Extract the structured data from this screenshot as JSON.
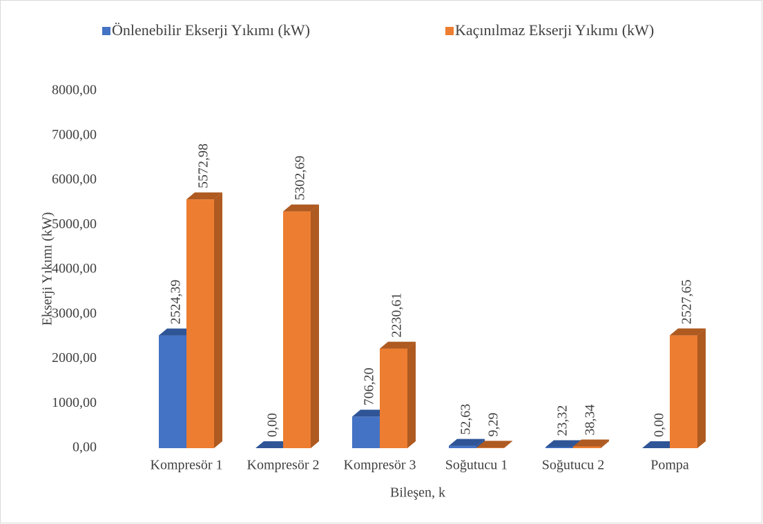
{
  "chart_data": {
    "type": "bar3d",
    "legend_position": "top",
    "x_label": "Bileşen, k",
    "y_label": "Ekserji Yıkımı (kW)",
    "categories": [
      "Kompresör 1",
      "Kompresör 2",
      "Kompresör 3",
      "Soğutucu 1",
      "Soğutucu 2",
      "Pompa"
    ],
    "series": [
      {
        "name": "Önlenebilir Ekserji Yıkımı (kW)",
        "color": "#4472c4",
        "side_color": "#2f5597",
        "values": [
          2524.39,
          0,
          706.2,
          52.63,
          23.32,
          0
        ],
        "value_labels": [
          "2524,39",
          "0,00",
          "706,20",
          "52,63",
          "23,32",
          "0,00"
        ]
      },
      {
        "name": "Kaçınılmaz Ekserji Yıkımı (kW)",
        "color": "#ed7d31",
        "side_color": "#ae5a21",
        "values": [
          5572.98,
          5302.69,
          2230.61,
          9.29,
          38.34,
          2527.65
        ],
        "value_labels": [
          "5572,98",
          "5302,69",
          "2230,61",
          "9,29",
          "38,34",
          "2527,65"
        ]
      }
    ],
    "ylim": [
      0,
      8000
    ],
    "yticks": [
      {
        "value": 0,
        "label": "0,00"
      },
      {
        "value": 1000,
        "label": "1000,00"
      },
      {
        "value": 2000,
        "label": "2000,00"
      },
      {
        "value": 3000,
        "label": "3000,00"
      },
      {
        "value": 4000,
        "label": "4000,00"
      },
      {
        "value": 5000,
        "label": "5000,00"
      },
      {
        "value": 6000,
        "label": "6000,00"
      },
      {
        "value": 7000,
        "label": "7000,00"
      },
      {
        "value": 8000,
        "label": "8000,00"
      }
    ],
    "grid": false
  }
}
